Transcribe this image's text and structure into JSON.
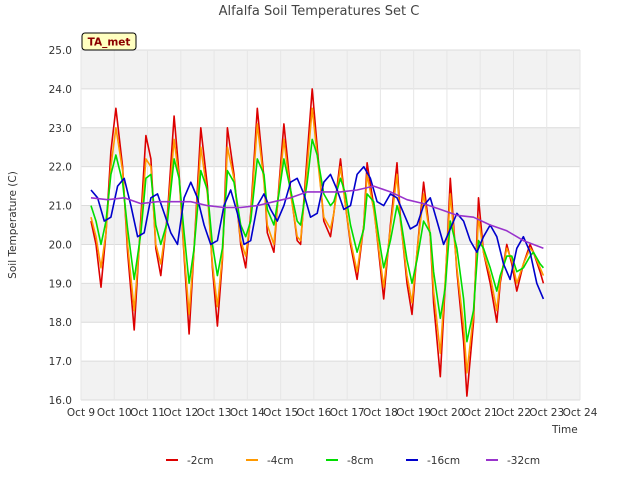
{
  "chart_data": {
    "type": "line",
    "title": "Alfalfa Soil Temperatures Set C",
    "badge": "TA_met",
    "xlabel": "Time",
    "ylabel": "Soil Temperature (C)",
    "ylim": [
      16.0,
      25.0
    ],
    "y_ticks": [
      "16.0",
      "17.0",
      "18.0",
      "19.0",
      "20.0",
      "21.0",
      "22.0",
      "23.0",
      "24.0",
      "25.0"
    ],
    "xlim": [
      9,
      24
    ],
    "x_ticks": [
      "Oct 9",
      "Oct 10",
      "Oct 11",
      "Oct 12",
      "Oct 13",
      "Oct 14",
      "Oct 15",
      "Oct 16",
      "Oct 17",
      "Oct 18",
      "Oct 19",
      "Oct 20",
      "Oct 21",
      "Oct 22",
      "Oct 23",
      "Oct 24"
    ],
    "grid": true,
    "legend_position": "bottom",
    "series": [
      {
        "name": "-2cm",
        "color": "#dd0000",
        "x": [
          9.3,
          9.45,
          9.6,
          9.75,
          9.9,
          10.05,
          10.25,
          10.4,
          10.6,
          10.8,
          10.95,
          11.1,
          11.25,
          11.4,
          11.6,
          11.8,
          11.95,
          12.1,
          12.25,
          12.4,
          12.6,
          12.8,
          12.95,
          13.1,
          13.25,
          13.4,
          13.6,
          13.8,
          13.95,
          14.1,
          14.3,
          14.5,
          14.6,
          14.8,
          14.95,
          15.1,
          15.3,
          15.5,
          15.6,
          15.8,
          15.95,
          16.1,
          16.3,
          16.5,
          16.6,
          16.8,
          16.95,
          17.1,
          17.3,
          17.5,
          17.6,
          17.8,
          17.95,
          18.1,
          18.3,
          18.5,
          18.6,
          18.8,
          18.95,
          19.1,
          19.3,
          19.5,
          19.6,
          19.8,
          19.95,
          20.1,
          20.3,
          20.5,
          20.6,
          20.8,
          20.95,
          21.1,
          21.3,
          21.5,
          21.6,
          21.8,
          21.95,
          22.1,
          22.3,
          22.5,
          22.6,
          22.8,
          22.9
        ],
        "y": [
          20.6,
          20.0,
          18.9,
          20.3,
          22.4,
          23.5,
          22.0,
          19.8,
          17.8,
          20.7,
          22.8,
          22.2,
          19.9,
          19.2,
          20.8,
          23.3,
          21.8,
          19.7,
          17.7,
          19.9,
          23.0,
          21.5,
          19.4,
          17.9,
          19.6,
          23.0,
          21.8,
          20.0,
          19.4,
          20.8,
          23.5,
          21.7,
          20.3,
          19.8,
          21.5,
          23.1,
          21.4,
          20.1,
          20.0,
          22.3,
          24.0,
          22.5,
          20.6,
          20.2,
          20.8,
          22.2,
          21.0,
          20.0,
          19.1,
          20.5,
          22.1,
          21.0,
          19.8,
          18.6,
          20.5,
          22.1,
          20.7,
          19.0,
          18.2,
          19.8,
          21.6,
          20.2,
          18.5,
          16.6,
          19.0,
          21.7,
          19.3,
          17.5,
          16.1,
          18.0,
          21.2,
          19.8,
          19.0,
          18.0,
          19.0,
          20.0,
          19.5,
          18.8,
          19.5,
          20.0,
          19.8,
          19.3,
          19.0
        ]
      },
      {
        "name": "-4cm",
        "color": "#ff9900",
        "x": [
          9.3,
          9.45,
          9.6,
          9.75,
          9.9,
          10.05,
          10.25,
          10.4,
          10.6,
          10.8,
          10.95,
          11.1,
          11.25,
          11.4,
          11.6,
          11.8,
          11.95,
          12.1,
          12.25,
          12.4,
          12.6,
          12.8,
          12.95,
          13.1,
          13.25,
          13.4,
          13.6,
          13.8,
          13.95,
          14.1,
          14.3,
          14.5,
          14.6,
          14.8,
          14.95,
          15.1,
          15.3,
          15.5,
          15.6,
          15.8,
          15.95,
          16.1,
          16.3,
          16.5,
          16.6,
          16.8,
          16.95,
          17.1,
          17.3,
          17.5,
          17.6,
          17.8,
          17.95,
          18.1,
          18.3,
          18.5,
          18.6,
          18.8,
          18.95,
          19.1,
          19.3,
          19.5,
          19.6,
          19.8,
          19.95,
          20.1,
          20.3,
          20.5,
          20.6,
          20.8,
          20.95,
          21.1,
          21.3,
          21.5,
          21.6,
          21.8,
          21.95,
          22.1,
          22.3,
          22.5,
          22.6,
          22.8,
          22.9
        ],
        "y": [
          20.7,
          20.2,
          19.4,
          20.3,
          22.0,
          23.0,
          21.9,
          20.0,
          18.3,
          20.5,
          22.2,
          22.0,
          20.0,
          19.5,
          20.7,
          22.7,
          21.7,
          19.8,
          18.2,
          19.9,
          22.5,
          21.3,
          19.5,
          18.4,
          19.7,
          22.5,
          21.7,
          20.1,
          19.7,
          20.7,
          23.1,
          21.6,
          20.5,
          20.0,
          21.4,
          22.7,
          21.3,
          20.2,
          20.1,
          22.0,
          23.5,
          22.3,
          20.7,
          20.4,
          20.8,
          22.0,
          21.0,
          20.1,
          19.3,
          20.5,
          21.8,
          20.9,
          19.9,
          18.9,
          20.4,
          21.8,
          20.6,
          19.2,
          18.5,
          19.8,
          21.3,
          20.2,
          18.8,
          17.2,
          19.1,
          21.3,
          19.4,
          17.9,
          16.7,
          18.2,
          20.7,
          19.8,
          19.2,
          18.3,
          19.1,
          19.9,
          19.6,
          19.0,
          19.5,
          19.9,
          19.8,
          19.4,
          19.2
        ]
      },
      {
        "name": "-8cm",
        "color": "#00dd00",
        "x": [
          9.3,
          9.45,
          9.6,
          9.75,
          9.9,
          10.05,
          10.25,
          10.4,
          10.6,
          10.8,
          10.95,
          11.1,
          11.25,
          11.4,
          11.6,
          11.8,
          11.95,
          12.1,
          12.25,
          12.4,
          12.6,
          12.8,
          12.95,
          13.1,
          13.25,
          13.4,
          13.6,
          13.8,
          13.95,
          14.1,
          14.3,
          14.5,
          14.6,
          14.8,
          14.95,
          15.1,
          15.3,
          15.5,
          15.6,
          15.8,
          15.95,
          16.1,
          16.3,
          16.5,
          16.6,
          16.8,
          16.95,
          17.1,
          17.3,
          17.5,
          17.6,
          17.8,
          17.95,
          18.1,
          18.3,
          18.5,
          18.6,
          18.8,
          18.95,
          19.1,
          19.3,
          19.5,
          19.6,
          19.8,
          19.95,
          20.1,
          20.3,
          20.5,
          20.6,
          20.8,
          20.95,
          21.1,
          21.3,
          21.5,
          21.6,
          21.8,
          21.95,
          22.1,
          22.3,
          22.5,
          22.6,
          22.8,
          22.9
        ],
        "y": [
          21.0,
          20.6,
          20.0,
          20.6,
          21.8,
          22.3,
          21.6,
          20.4,
          19.1,
          20.3,
          21.7,
          21.8,
          20.5,
          20.0,
          20.6,
          22.2,
          21.7,
          20.3,
          19.0,
          19.9,
          21.9,
          21.4,
          20.0,
          19.2,
          19.9,
          21.9,
          21.6,
          20.5,
          20.2,
          20.6,
          22.2,
          21.8,
          20.9,
          20.5,
          21.3,
          22.2,
          21.4,
          20.6,
          20.5,
          21.6,
          22.7,
          22.3,
          21.3,
          21.0,
          21.1,
          21.7,
          21.3,
          20.5,
          19.8,
          20.4,
          21.3,
          21.1,
          20.2,
          19.4,
          20.1,
          21.0,
          20.7,
          19.6,
          19.0,
          19.6,
          20.6,
          20.3,
          19.3,
          18.1,
          18.9,
          20.6,
          19.9,
          18.6,
          17.5,
          18.3,
          20.1,
          19.9,
          19.4,
          18.8,
          19.2,
          19.7,
          19.7,
          19.3,
          19.4,
          19.7,
          19.8,
          19.5,
          19.4
        ]
      },
      {
        "name": "-16cm",
        "color": "#0000cc",
        "x": [
          9.3,
          9.5,
          9.7,
          9.9,
          10.1,
          10.3,
          10.5,
          10.7,
          10.9,
          11.1,
          11.3,
          11.5,
          11.7,
          11.9,
          12.1,
          12.3,
          12.5,
          12.7,
          12.9,
          13.1,
          13.3,
          13.5,
          13.7,
          13.9,
          14.1,
          14.3,
          14.5,
          14.7,
          14.9,
          15.1,
          15.3,
          15.5,
          15.7,
          15.9,
          16.1,
          16.3,
          16.5,
          16.7,
          16.9,
          17.1,
          17.3,
          17.5,
          17.7,
          17.9,
          18.1,
          18.3,
          18.5,
          18.7,
          18.9,
          19.1,
          19.3,
          19.5,
          19.7,
          19.9,
          20.1,
          20.3,
          20.5,
          20.7,
          20.9,
          21.1,
          21.3,
          21.5,
          21.7,
          21.9,
          22.1,
          22.3,
          22.5,
          22.7,
          22.9
        ],
        "y": [
          21.4,
          21.2,
          20.6,
          20.7,
          21.5,
          21.7,
          21.0,
          20.2,
          20.3,
          21.2,
          21.3,
          20.8,
          20.3,
          20.0,
          21.2,
          21.6,
          21.2,
          20.5,
          20.0,
          20.1,
          21.0,
          21.4,
          20.8,
          20.0,
          20.1,
          21.0,
          21.3,
          20.9,
          20.6,
          21.0,
          21.6,
          21.7,
          21.3,
          20.7,
          20.8,
          21.6,
          21.8,
          21.4,
          20.9,
          21.0,
          21.8,
          22.0,
          21.7,
          21.1,
          21.0,
          21.3,
          21.2,
          20.8,
          20.4,
          20.5,
          21.0,
          21.2,
          20.6,
          20.0,
          20.4,
          20.8,
          20.6,
          20.1,
          19.8,
          20.2,
          20.5,
          20.2,
          19.5,
          19.1,
          19.9,
          20.2,
          19.8,
          19.0,
          18.6
        ]
      },
      {
        "name": "-32cm",
        "color": "#9933cc",
        "x": [
          9.3,
          9.8,
          10.3,
          10.8,
          11.3,
          11.8,
          12.3,
          12.8,
          13.3,
          13.8,
          14.3,
          14.8,
          15.3,
          15.8,
          16.3,
          16.8,
          17.3,
          17.8,
          18.3,
          18.8,
          19.3,
          19.8,
          20.3,
          20.8,
          21.3,
          21.8,
          22.3,
          22.9
        ],
        "y": [
          21.2,
          21.15,
          21.2,
          21.05,
          21.1,
          21.1,
          21.1,
          21.0,
          20.95,
          20.95,
          21.0,
          21.1,
          21.2,
          21.35,
          21.35,
          21.35,
          21.4,
          21.5,
          21.35,
          21.15,
          21.05,
          20.9,
          20.75,
          20.7,
          20.5,
          20.35,
          20.1,
          19.9
        ]
      }
    ]
  }
}
